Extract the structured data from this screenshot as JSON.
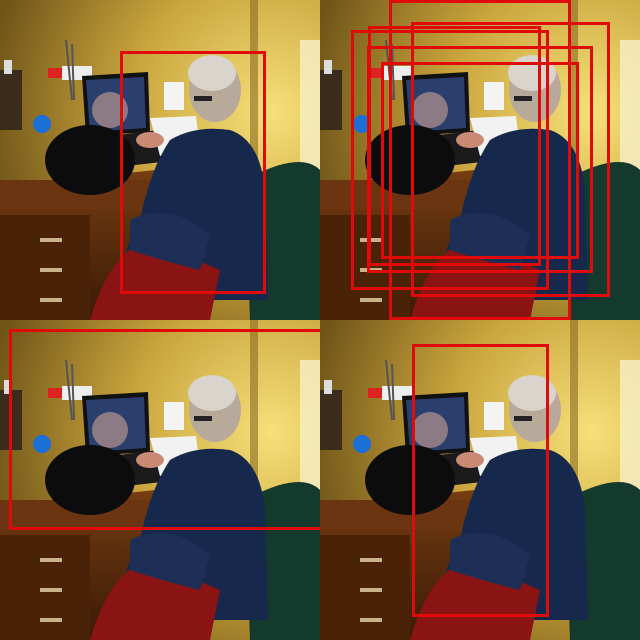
{
  "image": {
    "description_free": true,
    "box_color": "#e00a0a",
    "panels": [
      {
        "name": "panel-top-left",
        "box_count": 1
      },
      {
        "name": "panel-top-right",
        "box_count": 6
      },
      {
        "name": "panel-bottom-left",
        "box_count": 1
      },
      {
        "name": "panel-bottom-right",
        "box_count": 1
      }
    ]
  }
}
